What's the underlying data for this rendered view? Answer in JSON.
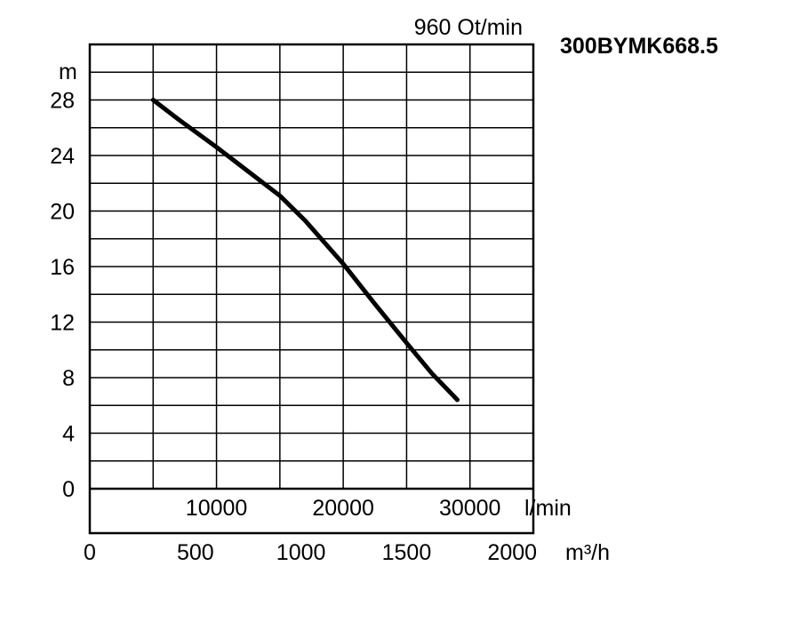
{
  "chart_data": {
    "type": "line",
    "title": "300BYMK668.5",
    "subtitle": "960 Ot/min",
    "ylabel": "m",
    "ylim": [
      0,
      32
    ],
    "y_ticks": [
      "0",
      "4",
      "8",
      "12",
      "16",
      "20",
      "24",
      "28"
    ],
    "xlim_flow_lpm": [
      0,
      35000
    ],
    "x_ticks_lpm": [
      "10000",
      "20000",
      "30000"
    ],
    "x_unit_lpm": "l/min",
    "x_ticks_m3h": [
      "0",
      "500",
      "1000",
      "1500",
      "2000"
    ],
    "x_unit_m3h": "m³/h",
    "grid": true,
    "series": [
      {
        "x_lpm": [
          5000,
          7000,
          10000,
          13000,
          15000,
          17000,
          20000,
          22500,
          25000,
          27000,
          29000
        ],
        "y_m": [
          28,
          26.6,
          24.6,
          22.5,
          21.1,
          19.3,
          16.2,
          13.3,
          10.5,
          8.3,
          6.4
        ]
      }
    ]
  }
}
